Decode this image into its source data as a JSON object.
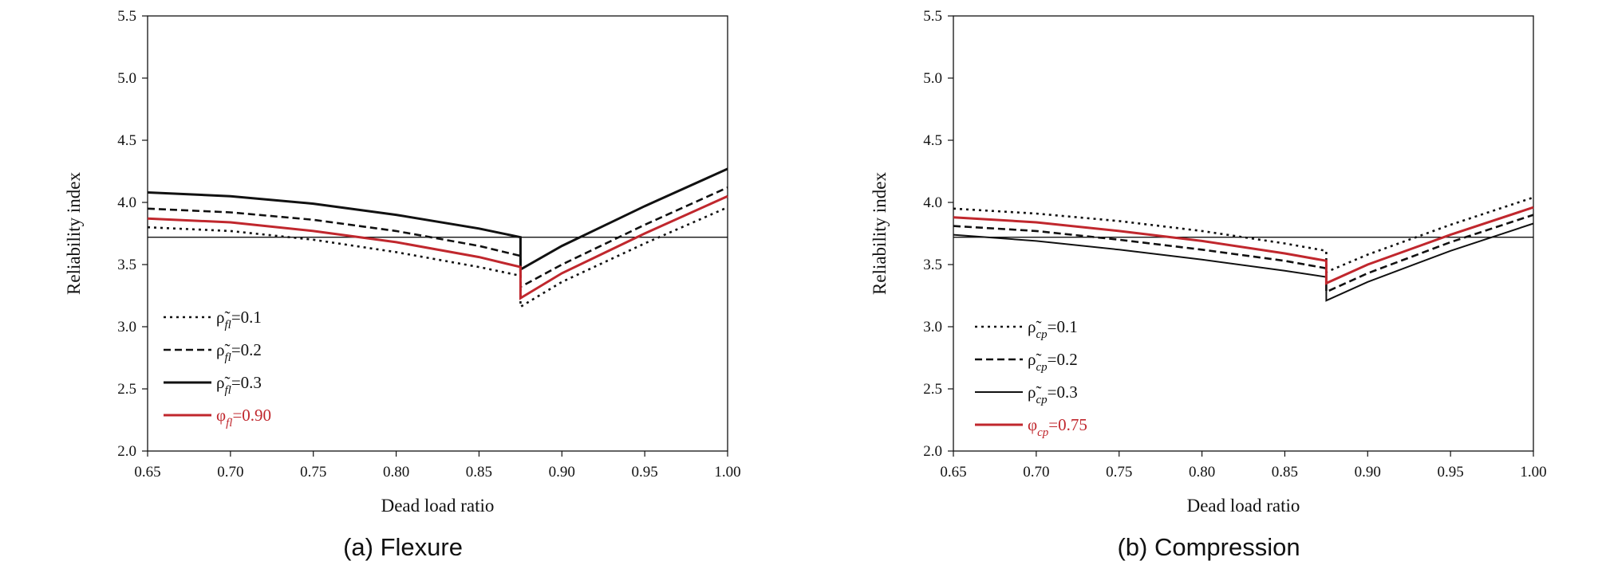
{
  "chart_data": [
    {
      "type": "line",
      "caption": "(a) Flexure",
      "xlabel": "Dead load ratio",
      "ylabel": "Reliability index",
      "xlim": [
        0.65,
        1.0
      ],
      "ylim": [
        2.0,
        5.5
      ],
      "xticks": [
        "0.65",
        "0.70",
        "0.75",
        "0.80",
        "0.85",
        "0.90",
        "0.95",
        "1.00"
      ],
      "yticks": [
        "2.0",
        "2.5",
        "3.0",
        "3.5",
        "4.0",
        "4.5",
        "5.0",
        "5.5"
      ],
      "grid": false,
      "legend_position": "lower-left",
      "target_line": {
        "y": 3.72
      },
      "series": [
        {
          "legend_base": "ρ̃",
          "legend_sub": "fl",
          "legend_value": "=0.1",
          "style": "dotted",
          "color": "#111111",
          "segments": [
            [
              [
                0.65,
                3.8
              ],
              [
                0.7,
                3.77
              ],
              [
                0.75,
                3.7
              ],
              [
                0.8,
                3.6
              ],
              [
                0.85,
                3.48
              ],
              [
                0.875,
                3.41
              ]
            ],
            [
              [
                0.875,
                3.16
              ],
              [
                0.9,
                3.36
              ],
              [
                0.95,
                3.67
              ],
              [
                1.0,
                3.96
              ]
            ]
          ]
        },
        {
          "legend_base": "ρ̃",
          "legend_sub": "fl",
          "legend_value": "=0.2",
          "style": "dashed",
          "color": "#111111",
          "segments": [
            [
              [
                0.65,
                3.95
              ],
              [
                0.7,
                3.92
              ],
              [
                0.75,
                3.86
              ],
              [
                0.8,
                3.77
              ],
              [
                0.85,
                3.65
              ],
              [
                0.875,
                3.57
              ]
            ],
            [
              [
                0.875,
                3.32
              ],
              [
                0.9,
                3.5
              ],
              [
                0.95,
                3.82
              ],
              [
                1.0,
                4.12
              ]
            ]
          ]
        },
        {
          "legend_base": "ρ̃",
          "legend_sub": "fl",
          "legend_value": "=0.3",
          "style": "solid",
          "color": "#111111",
          "width": 3,
          "segments": [
            [
              [
                0.65,
                4.08
              ],
              [
                0.7,
                4.05
              ],
              [
                0.75,
                3.99
              ],
              [
                0.8,
                3.9
              ],
              [
                0.85,
                3.79
              ],
              [
                0.875,
                3.72
              ]
            ],
            [
              [
                0.875,
                3.46
              ],
              [
                0.9,
                3.65
              ],
              [
                0.95,
                3.97
              ],
              [
                1.0,
                4.27
              ]
            ]
          ]
        },
        {
          "legend_base": "φ",
          "legend_sub": "fl",
          "legend_value": "=0.90",
          "style": "solid",
          "color": "#c0272d",
          "width": 3,
          "segments": [
            [
              [
                0.65,
                3.87
              ],
              [
                0.7,
                3.84
              ],
              [
                0.75,
                3.77
              ],
              [
                0.8,
                3.68
              ],
              [
                0.85,
                3.56
              ],
              [
                0.875,
                3.48
              ]
            ],
            [
              [
                0.875,
                3.23
              ],
              [
                0.9,
                3.43
              ],
              [
                0.95,
                3.75
              ],
              [
                1.0,
                4.05
              ]
            ]
          ]
        }
      ]
    },
    {
      "type": "line",
      "caption": "(b) Compression",
      "xlabel": "Dead load ratio",
      "ylabel": "Reliability index",
      "xlim": [
        0.65,
        1.0
      ],
      "ylim": [
        2.0,
        5.5
      ],
      "xticks": [
        "0.65",
        "0.70",
        "0.75",
        "0.80",
        "0.85",
        "0.90",
        "0.95",
        "1.00"
      ],
      "yticks": [
        "2.0",
        "2.5",
        "3.0",
        "3.5",
        "4.0",
        "4.5",
        "5.0",
        "5.5"
      ],
      "grid": false,
      "legend_position": "lower-left",
      "target_line": {
        "y": 3.72
      },
      "series": [
        {
          "legend_base": "ρ̃",
          "legend_sub": "cp",
          "legend_value": "=0.1",
          "style": "dotted",
          "color": "#111111",
          "segments": [
            [
              [
                0.65,
                3.95
              ],
              [
                0.7,
                3.91
              ],
              [
                0.75,
                3.85
              ],
              [
                0.8,
                3.77
              ],
              [
                0.85,
                3.67
              ],
              [
                0.875,
                3.61
              ]
            ],
            [
              [
                0.875,
                3.44
              ],
              [
                0.9,
                3.58
              ],
              [
                0.95,
                3.82
              ],
              [
                1.0,
                4.04
              ]
            ]
          ]
        },
        {
          "legend_base": "ρ̃",
          "legend_sub": "cp",
          "legend_value": "=0.2",
          "style": "dashed",
          "color": "#111111",
          "segments": [
            [
              [
                0.65,
                3.81
              ],
              [
                0.7,
                3.77
              ],
              [
                0.75,
                3.7
              ],
              [
                0.8,
                3.62
              ],
              [
                0.85,
                3.53
              ],
              [
                0.875,
                3.47
              ]
            ],
            [
              [
                0.875,
                3.28
              ],
              [
                0.9,
                3.43
              ],
              [
                0.95,
                3.68
              ],
              [
                1.0,
                3.9
              ]
            ]
          ]
        },
        {
          "legend_base": "ρ̃",
          "legend_sub": "cp",
          "legend_value": "=0.3",
          "style": "solid",
          "color": "#111111",
          "width": 2,
          "segments": [
            [
              [
                0.65,
                3.74
              ],
              [
                0.7,
                3.69
              ],
              [
                0.75,
                3.62
              ],
              [
                0.8,
                3.54
              ],
              [
                0.85,
                3.45
              ],
              [
                0.875,
                3.4
              ]
            ],
            [
              [
                0.875,
                3.21
              ],
              [
                0.9,
                3.36
              ],
              [
                0.95,
                3.61
              ],
              [
                1.0,
                3.83
              ]
            ]
          ]
        },
        {
          "legend_base": "φ",
          "legend_sub": "cp",
          "legend_value": "=0.75",
          "style": "solid",
          "color": "#c0272d",
          "width": 3,
          "segments": [
            [
              [
                0.65,
                3.88
              ],
              [
                0.7,
                3.84
              ],
              [
                0.75,
                3.77
              ],
              [
                0.8,
                3.69
              ],
              [
                0.85,
                3.59
              ],
              [
                0.875,
                3.53
              ]
            ],
            [
              [
                0.875,
                3.35
              ],
              [
                0.9,
                3.5
              ],
              [
                0.95,
                3.74
              ],
              [
                1.0,
                3.96
              ]
            ]
          ]
        }
      ]
    }
  ]
}
